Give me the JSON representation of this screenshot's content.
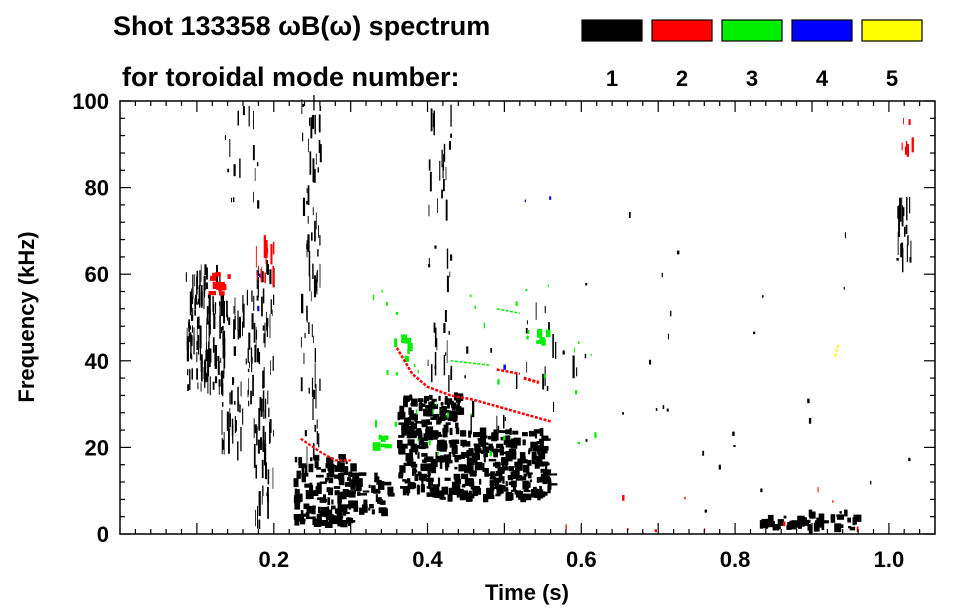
{
  "chart_data": {
    "type": "heatmap",
    "title_line1": "Shot 133358 ωB(ω) spectrum",
    "title_line2": "for toroidal mode number:",
    "xlabel": "Time (s)",
    "ylabel": "Frequency (kHz)",
    "xlim": [
      0.0,
      1.06
    ],
    "ylim": [
      0,
      100
    ],
    "x_ticks": [
      {
        "value": 0.2,
        "label": "0.2"
      },
      {
        "value": 0.4,
        "label": "0.4"
      },
      {
        "value": 0.6,
        "label": "0.6"
      },
      {
        "value": 0.8,
        "label": "0.8"
      },
      {
        "value": 1.0,
        "label": "1.0"
      }
    ],
    "y_ticks": [
      {
        "value": 0,
        "label": "0"
      },
      {
        "value": 20,
        "label": "20"
      },
      {
        "value": 40,
        "label": "40"
      },
      {
        "value": 60,
        "label": "60"
      },
      {
        "value": 80,
        "label": "80"
      },
      {
        "value": 100,
        "label": "100"
      }
    ],
    "legend": {
      "placement": "top-right",
      "entries": [
        {
          "label": "1",
          "color": "#000000"
        },
        {
          "label": "2",
          "color": "#ff0000"
        },
        {
          "label": "3",
          "color": "#00ee00"
        },
        {
          "label": "4",
          "color": "#0000ff"
        },
        {
          "label": "5",
          "color": "#ffff00"
        }
      ]
    },
    "regions": [
      {
        "mode": 1,
        "t": [
          0.085,
          0.135
        ],
        "f": [
          33,
          62
        ],
        "density": 0.75,
        "dir": "v"
      },
      {
        "mode": 1,
        "t": [
          0.13,
          0.175
        ],
        "f": [
          18,
          56
        ],
        "density": 0.4,
        "dir": "v"
      },
      {
        "mode": 1,
        "t": [
          0.175,
          0.2
        ],
        "f": [
          2,
          62
        ],
        "density": 0.4,
        "dir": "v"
      },
      {
        "mode": 1,
        "t": [
          0.225,
          0.3
        ],
        "f": [
          2,
          18
        ],
        "density": 0.8,
        "dir": "h"
      },
      {
        "mode": 1,
        "t": [
          0.3,
          0.35
        ],
        "f": [
          5,
          14
        ],
        "density": 0.5,
        "dir": "h"
      },
      {
        "mode": 1,
        "t": [
          0.235,
          0.26
        ],
        "f": [
          18,
          100
        ],
        "density": 0.3,
        "dir": "v"
      },
      {
        "mode": 1,
        "t": [
          0.36,
          0.44
        ],
        "f": [
          8,
          32
        ],
        "density": 0.85,
        "dir": "h"
      },
      {
        "mode": 1,
        "t": [
          0.44,
          0.55
        ],
        "f": [
          8,
          24
        ],
        "density": 0.8,
        "dir": "h"
      },
      {
        "mode": 1,
        "t": [
          0.545,
          0.565
        ],
        "f": [
          10,
          17
        ],
        "density": 0.7,
        "dir": "h"
      },
      {
        "mode": 1,
        "t": [
          0.4,
          0.43
        ],
        "f": [
          30,
          98
        ],
        "density": 0.2,
        "dir": "v"
      },
      {
        "mode": 1,
        "t": [
          0.83,
          0.885
        ],
        "f": [
          1,
          4
        ],
        "density": 0.8,
        "dir": "h"
      },
      {
        "mode": 1,
        "t": [
          0.885,
          0.955
        ],
        "f": [
          1,
          5
        ],
        "density": 0.7,
        "dir": "h"
      },
      {
        "mode": 1,
        "t": [
          1.01,
          1.03
        ],
        "f": [
          63,
          76
        ],
        "density": 0.7,
        "dir": "v"
      },
      {
        "mode": 1,
        "t": [
          0.13,
          0.18
        ],
        "f": [
          60,
          98
        ],
        "density": 0.08,
        "dir": "v"
      },
      {
        "mode": 1,
        "t": [
          0.44,
          0.6
        ],
        "f": [
          24,
          52
        ],
        "density": 0.05,
        "dir": "v"
      },
      {
        "mode": 2,
        "t": [
          0.115,
          0.14
        ],
        "f": [
          55,
          60
        ],
        "density": 0.6,
        "dir": "h"
      },
      {
        "mode": 2,
        "t": [
          0.175,
          0.2
        ],
        "f": [
          58,
          68
        ],
        "density": 0.5,
        "dir": "v"
      },
      {
        "mode": 2,
        "t": [
          1.015,
          1.03
        ],
        "f": [
          88,
          96
        ],
        "density": 0.5,
        "dir": "v"
      },
      {
        "mode": 3,
        "t": [
          0.51,
          0.56
        ],
        "f": [
          44,
          47
        ],
        "density": 0.3,
        "dir": "h"
      },
      {
        "mode": 3,
        "t": [
          0.35,
          0.38
        ],
        "f": [
          40,
          46
        ],
        "density": 0.2,
        "dir": "h"
      },
      {
        "mode": 3,
        "t": [
          0.32,
          0.35
        ],
        "f": [
          20,
          28
        ],
        "density": 0.2,
        "dir": "h"
      }
    ],
    "curves": [
      {
        "mode": 2,
        "points": [
          [
            0.235,
            22
          ],
          [
            0.26,
            19
          ],
          [
            0.28,
            17
          ],
          [
            0.3,
            17
          ]
        ],
        "thickness": 2.2
      },
      {
        "mode": 2,
        "points": [
          [
            0.36,
            43
          ],
          [
            0.38,
            37
          ],
          [
            0.4,
            34
          ],
          [
            0.43,
            32
          ],
          [
            0.46,
            31
          ],
          [
            0.5,
            29
          ],
          [
            0.52,
            28
          ],
          [
            0.56,
            26
          ]
        ],
        "thickness": 2.5
      },
      {
        "mode": 2,
        "points": [
          [
            0.49,
            38
          ],
          [
            0.52,
            37
          ]
        ],
        "thickness": 2.5
      },
      {
        "mode": 2,
        "points": [
          [
            0.525,
            36
          ],
          [
            0.545,
            35
          ]
        ],
        "thickness": 3
      },
      {
        "mode": 3,
        "points": [
          [
            0.49,
            52
          ],
          [
            0.52,
            51
          ]
        ],
        "thickness": 1.5
      },
      {
        "mode": 3,
        "points": [
          [
            0.43,
            40
          ],
          [
            0.48,
            39
          ]
        ],
        "thickness": 1.5
      },
      {
        "mode": 5,
        "points": [
          [
            0.93,
            41
          ],
          [
            0.935,
            44
          ]
        ],
        "thickness": 2
      }
    ],
    "specks": [
      {
        "mode": 3,
        "t": [
          0.32,
          0.62
        ],
        "f": [
          18,
          58
        ],
        "count": 35
      },
      {
        "mode": 2,
        "t": [
          0.55,
          0.98
        ],
        "f": [
          1,
          12
        ],
        "count": 10
      },
      {
        "mode": 1,
        "t": [
          0.6,
          1.04
        ],
        "f": [
          5,
          75
        ],
        "count": 28
      },
      {
        "mode": 4,
        "t": [
          0.15,
          0.6
        ],
        "f": [
          30,
          85
        ],
        "count": 5
      }
    ]
  }
}
